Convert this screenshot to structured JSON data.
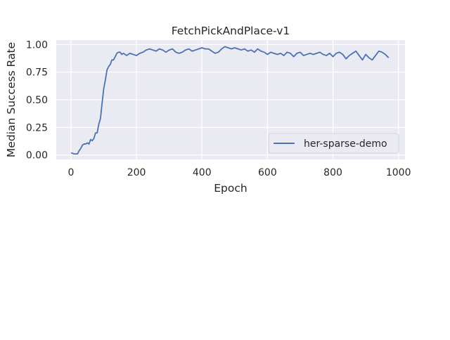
{
  "chart_data": {
    "type": "line",
    "title": "FetchPickAndPlace-v1",
    "xlabel": "Epoch",
    "ylabel": "Median Success Rate",
    "xlim": [
      -45,
      1020
    ],
    "ylim": [
      -0.04,
      1.04
    ],
    "xticks": [
      0,
      200,
      400,
      600,
      800,
      1000
    ],
    "xtick_labels": [
      "0",
      "200",
      "400",
      "600",
      "800",
      "1000"
    ],
    "yticks": [
      0.0,
      0.25,
      0.5,
      0.75,
      1.0
    ],
    "ytick_labels": [
      "0.00",
      "0.25",
      "0.50",
      "0.75",
      "1.00"
    ],
    "grid": true,
    "legend_position": "lower-right",
    "colors": {
      "series": "#4c72b0",
      "plot_background": "#eaeaf2",
      "grid": "#ffffff",
      "text": "#262626"
    },
    "series": [
      {
        "name": "her-sparse-demo",
        "x": [
          0,
          10,
          20,
          25,
          30,
          35,
          40,
          45,
          50,
          55,
          60,
          65,
          70,
          75,
          80,
          85,
          90,
          95,
          100,
          105,
          110,
          115,
          120,
          125,
          130,
          135,
          140,
          145,
          150,
          155,
          160,
          170,
          180,
          190,
          200,
          210,
          220,
          230,
          240,
          250,
          260,
          270,
          280,
          290,
          300,
          310,
          320,
          330,
          340,
          350,
          360,
          370,
          380,
          390,
          400,
          410,
          420,
          430,
          440,
          450,
          460,
          470,
          480,
          490,
          500,
          510,
          520,
          530,
          540,
          550,
          560,
          570,
          580,
          590,
          600,
          610,
          620,
          630,
          640,
          650,
          660,
          670,
          680,
          690,
          700,
          710,
          720,
          730,
          740,
          750,
          760,
          770,
          780,
          790,
          800,
          810,
          820,
          830,
          840,
          850,
          860,
          870,
          880,
          890,
          900,
          910,
          920,
          930,
          940,
          950,
          960,
          970
        ],
        "y": [
          0.02,
          0.01,
          0.01,
          0.04,
          0.06,
          0.09,
          0.1,
          0.1,
          0.11,
          0.1,
          0.14,
          0.13,
          0.15,
          0.2,
          0.2,
          0.28,
          0.33,
          0.47,
          0.6,
          0.68,
          0.77,
          0.8,
          0.82,
          0.86,
          0.86,
          0.89,
          0.92,
          0.93,
          0.93,
          0.91,
          0.92,
          0.9,
          0.92,
          0.91,
          0.9,
          0.92,
          0.93,
          0.95,
          0.96,
          0.95,
          0.94,
          0.96,
          0.95,
          0.93,
          0.95,
          0.96,
          0.93,
          0.92,
          0.93,
          0.95,
          0.96,
          0.94,
          0.95,
          0.96,
          0.97,
          0.96,
          0.96,
          0.94,
          0.92,
          0.93,
          0.96,
          0.98,
          0.97,
          0.96,
          0.97,
          0.96,
          0.95,
          0.96,
          0.94,
          0.95,
          0.93,
          0.96,
          0.94,
          0.93,
          0.91,
          0.93,
          0.92,
          0.91,
          0.92,
          0.9,
          0.93,
          0.92,
          0.89,
          0.92,
          0.93,
          0.9,
          0.91,
          0.92,
          0.91,
          0.92,
          0.93,
          0.91,
          0.9,
          0.92,
          0.89,
          0.92,
          0.93,
          0.91,
          0.87,
          0.9,
          0.92,
          0.94,
          0.9,
          0.86,
          0.91,
          0.88,
          0.86,
          0.9,
          0.94,
          0.93,
          0.91,
          0.88
        ]
      }
    ]
  }
}
